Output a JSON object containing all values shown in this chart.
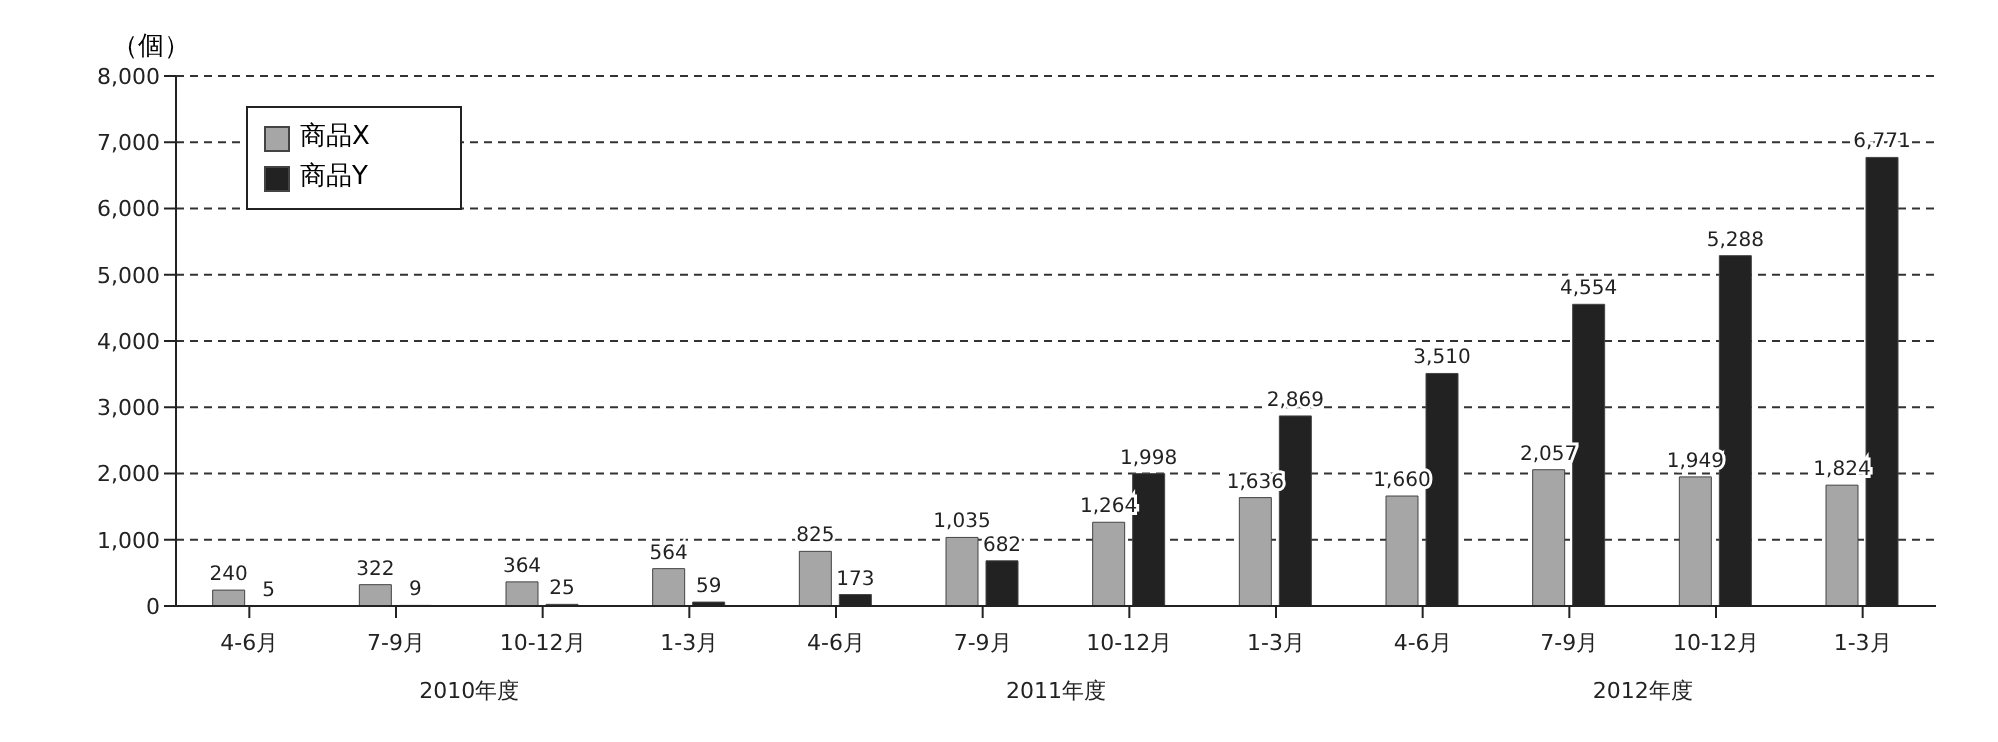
{
  "chart_data": {
    "type": "bar",
    "ylabel": "（個）",
    "categories": [
      "4-6月",
      "7-9月",
      "10-12月",
      "1-3月",
      "4-6月",
      "7-9月",
      "10-12月",
      "1-3月",
      "4-6月",
      "7-9月",
      "10-12月",
      "1-3月"
    ],
    "annotations": [
      "2010年度",
      "2011年度",
      "2012年度"
    ],
    "series": [
      {
        "name": "商品X",
        "color": "#a6a6a6",
        "values": [
          240,
          322,
          364,
          564,
          825,
          1035,
          1264,
          1636,
          1660,
          2057,
          1949,
          1824
        ],
        "value_labels": [
          "240",
          "322",
          "364",
          "564",
          "825",
          "1,035",
          "1,264",
          "1,636",
          "1,660",
          "2,057",
          "1,949",
          "1,824"
        ]
      },
      {
        "name": "商品Y",
        "color": "#222222",
        "values": [
          5,
          9,
          25,
          59,
          173,
          682,
          1998,
          2869,
          3510,
          4554,
          5288,
          6771
        ],
        "value_labels": [
          "5",
          "9",
          "25",
          "59",
          "173",
          "682",
          "1,998",
          "2,869",
          "3,510",
          "4,554",
          "5,288",
          "6,771"
        ]
      }
    ],
    "ylim": [
      0,
      8000
    ],
    "yticks": [
      {
        "value": 0,
        "label": "0"
      },
      {
        "value": 1000,
        "label": "1,000"
      },
      {
        "value": 2000,
        "label": "2,000"
      },
      {
        "value": 3000,
        "label": "3,000"
      },
      {
        "value": 4000,
        "label": "4,000"
      },
      {
        "value": 5000,
        "label": "5,000"
      },
      {
        "value": 6000,
        "label": "6,000"
      },
      {
        "value": 7000,
        "label": "7,000"
      },
      {
        "value": 8000,
        "label": "8,000"
      }
    ],
    "grid": "y",
    "legend": "top left"
  }
}
